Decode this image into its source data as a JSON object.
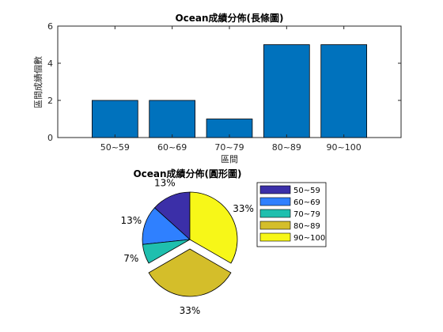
{
  "colors": {
    "bar": "#0072BD",
    "axis": "#262626",
    "pie": [
      "#3B2FA8",
      "#2F80FF",
      "#1FBFAE",
      "#D4BE2A",
      "#F7F718"
    ]
  },
  "chart_data": [
    {
      "type": "bar",
      "title": "Ocean成績分佈(長條圖)",
      "xlabel": "區間",
      "ylabel": "區間成績個數",
      "categories": [
        "50~59",
        "60~69",
        "70~79",
        "80~89",
        "90~100"
      ],
      "values": [
        2,
        2,
        1,
        5,
        5
      ],
      "xlim": [
        0,
        6
      ],
      "ylim": [
        0,
        6
      ],
      "yticks": [
        "0",
        "2",
        "4",
        "6"
      ],
      "grid": false
    },
    {
      "type": "pie",
      "title": "Ocean成績分佈(圓形圖)",
      "categories": [
        "50~59",
        "60~69",
        "70~79",
        "80~89",
        "90~100"
      ],
      "values": [
        2,
        2,
        1,
        5,
        5
      ],
      "labels": [
        "13%",
        "13%",
        "7%",
        "33%",
        "33%"
      ],
      "exploded": [
        false,
        false,
        false,
        true,
        false
      ],
      "legend": "right"
    }
  ]
}
